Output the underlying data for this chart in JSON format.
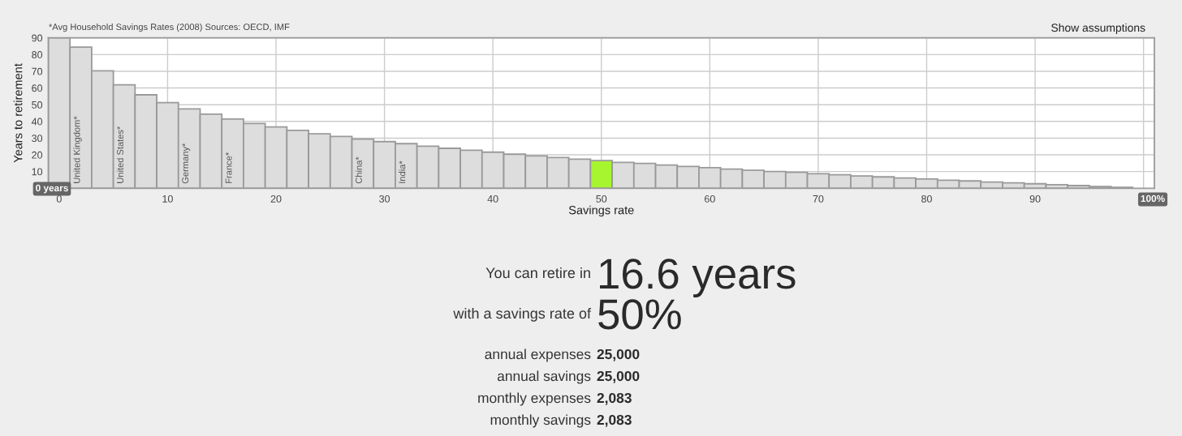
{
  "chart_data": [
    {
      "type": "bar",
      "xlabel": "Savings rate",
      "ylabel": "Years to retirement",
      "x": [
        0,
        2,
        4,
        6,
        8,
        10,
        12,
        14,
        16,
        18,
        20,
        22,
        24,
        26,
        28,
        30,
        32,
        34,
        36,
        38,
        40,
        42,
        44,
        46,
        48,
        50,
        52,
        54,
        56,
        58,
        60,
        62,
        64,
        66,
        68,
        70,
        72,
        74,
        76,
        78,
        80,
        82,
        84,
        86,
        88,
        90,
        92,
        94,
        96,
        98
      ],
      "values": [
        90,
        84.5,
        70.3,
        61.9,
        55.9,
        51.2,
        47.5,
        44.3,
        41.4,
        38.8,
        36.7,
        34.6,
        32.6,
        31.0,
        29.4,
        27.9,
        26.7,
        25.2,
        23.9,
        22.8,
        21.6,
        20.4,
        19.4,
        18.4,
        17.4,
        16.6,
        15.5,
        14.9,
        13.9,
        13.1,
        12.3,
        11.5,
        10.8,
        10.0,
        9.5,
        8.7,
        8.1,
        7.4,
        6.8,
        6.1,
        5.5,
        4.8,
        4.4,
        3.7,
        3.2,
        2.7,
        2.1,
        1.6,
        1.0,
        0.5
      ],
      "colors": [
        "#dddddd",
        "#dddddd",
        "#dddddd",
        "#dddddd",
        "#dddddd",
        "#dddddd",
        "#dddddd",
        "#dddddd",
        "#dddddd",
        "#dddddd",
        "#dddddd",
        "#dddddd",
        "#dddddd",
        "#dddddd",
        "#dddddd",
        "#dddddd",
        "#dddddd",
        "#dddddd",
        "#dddddd",
        "#dddddd",
        "#dddddd",
        "#dddddd",
        "#dddddd",
        "#dddddd",
        "#dddddd",
        "#a6f52f",
        "#dddddd",
        "#dddddd",
        "#dddddd",
        "#dddddd",
        "#dddddd",
        "#dddddd",
        "#dddddd",
        "#dddddd",
        "#dddddd",
        "#dddddd",
        "#dddddd",
        "#dddddd",
        "#dddddd",
        "#dddddd",
        "#dddddd",
        "#dddddd",
        "#dddddd",
        "#dddddd",
        "#dddddd",
        "#dddddd",
        "#dddddd",
        "#dddddd",
        "#dddddd",
        "#dddddd"
      ],
      "xlim": [
        -1,
        101
      ],
      "ylim": [
        0,
        90
      ],
      "xticks": [
        0,
        10,
        20,
        30,
        40,
        50,
        60,
        70,
        80,
        90,
        {
          "value": 100,
          "label": null
        }
      ],
      "yticks": [
        10,
        20,
        30,
        40,
        50,
        60,
        70,
        80,
        90
      ],
      "grid": true,
      "annotations": [
        "*Avg Household Savings Rates (2008) Sources: OECD, IMF",
        "Show assumptions",
        {
          "text": "United Kingdom*",
          "x": 2,
          "y": 0
        },
        {
          "text": "United States*",
          "x": 6,
          "y": 0
        },
        {
          "text": "Germany*",
          "x": 12,
          "y": 0
        },
        {
          "text": "France*",
          "x": 16,
          "y": 0
        },
        {
          "text": "China*",
          "x": 28,
          "y": 0
        },
        {
          "text": "India*",
          "x": 32,
          "y": 0
        },
        "0 years",
        "100%"
      ]
    },
    {
      "type": "other",
      "annotations": [
        "You can retire in",
        "16.6 years",
        "with a savings rate of",
        "50%",
        "annual expenses",
        "25,000",
        "annual savings",
        "25,000",
        "monthly expenses",
        "2,083",
        "monthly savings",
        "2,083"
      ]
    }
  ]
}
